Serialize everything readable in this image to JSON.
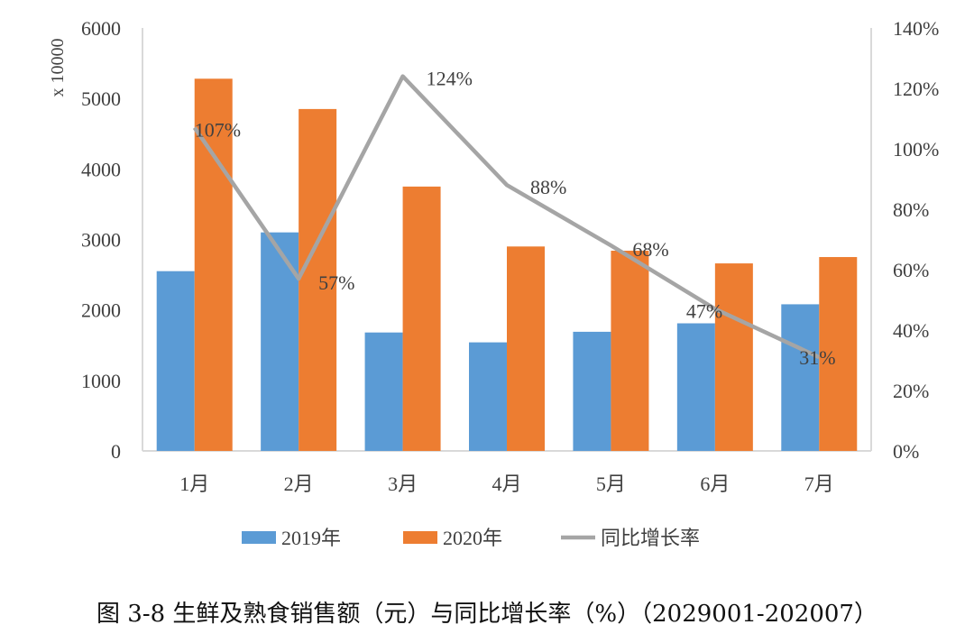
{
  "caption": "图 3-8  生鲜及熟食销售额（元）与同比增长率（%）（2029001-202007）",
  "chart_data": {
    "type": "bar",
    "categories": [
      "1月",
      "2月",
      "3月",
      "4月",
      "5月",
      "6月",
      "7月"
    ],
    "series": [
      {
        "name": "2019年",
        "type": "bar",
        "axis": "left",
        "color": "#5B9BD5",
        "values": [
          2550,
          3100,
          1680,
          1540,
          1690,
          1810,
          2080
        ]
      },
      {
        "name": "2020年",
        "type": "bar",
        "axis": "left",
        "color": "#ED7D31",
        "values": [
          5280,
          4850,
          3750,
          2900,
          2840,
          2660,
          2750
        ]
      },
      {
        "name": "同比增长率",
        "type": "line",
        "axis": "right",
        "color": "#A5A5A5",
        "values": [
          107,
          57,
          124,
          88,
          68,
          47,
          31
        ],
        "labels": [
          "107%",
          "57%",
          "124%",
          "88%",
          "68%",
          "47%",
          "31%"
        ]
      }
    ],
    "y_left": {
      "unit_label": "x 10000",
      "ylim": [
        0,
        6000
      ],
      "ticks": [
        "0",
        "1000",
        "2000",
        "3000",
        "4000",
        "5000",
        "6000"
      ]
    },
    "y_right": {
      "ylim": [
        0,
        140
      ],
      "ticks": [
        "0%",
        "20%",
        "40%",
        "60%",
        "80%",
        "100%",
        "120%",
        "140%"
      ]
    },
    "grid": false,
    "legend_position": "bottom"
  }
}
